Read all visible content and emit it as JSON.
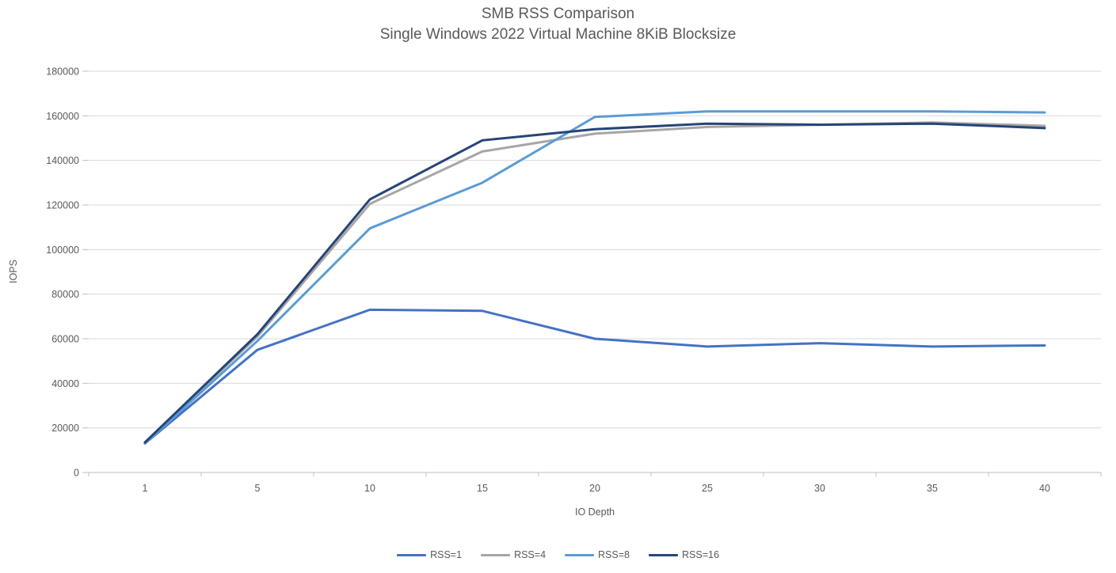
{
  "chart_data": {
    "type": "line",
    "title": "SMB RSS Comparison",
    "subtitle": "Single Windows 2022 Virtual Machine 8KiB Blocksize",
    "xlabel": "IO Depth",
    "ylabel": "IOPS",
    "categories": [
      "1",
      "5",
      "10",
      "15",
      "20",
      "25",
      "30",
      "35",
      "40"
    ],
    "ylim": [
      0,
      180000
    ],
    "ytick_step": 20000,
    "yticks": [
      0,
      20000,
      40000,
      60000,
      80000,
      100000,
      120000,
      140000,
      160000,
      180000
    ],
    "grid": "horizontal",
    "legend_position": "bottom",
    "series": [
      {
        "name": "RSS=1",
        "color": "#4472C4",
        "values": [
          13000,
          55000,
          73000,
          72500,
          60000,
          56500,
          58000,
          56500,
          57000
        ]
      },
      {
        "name": "RSS=4",
        "color": "#A6A6A6",
        "values": [
          13500,
          61000,
          120500,
          144000,
          152000,
          155000,
          156000,
          157000,
          155500
        ]
      },
      {
        "name": "RSS=8",
        "color": "#5B9BD5",
        "values": [
          13000,
          59000,
          109500,
          130000,
          159500,
          162000,
          162000,
          162000,
          161500
        ]
      },
      {
        "name": "RSS=16",
        "color": "#264478",
        "values": [
          13500,
          62000,
          122500,
          149000,
          154000,
          156500,
          156000,
          156500,
          154500
        ]
      }
    ],
    "style": {
      "gridline_color": "#D9D9D9",
      "axis_color": "#BFBFBF",
      "text_color": "#595959"
    }
  }
}
